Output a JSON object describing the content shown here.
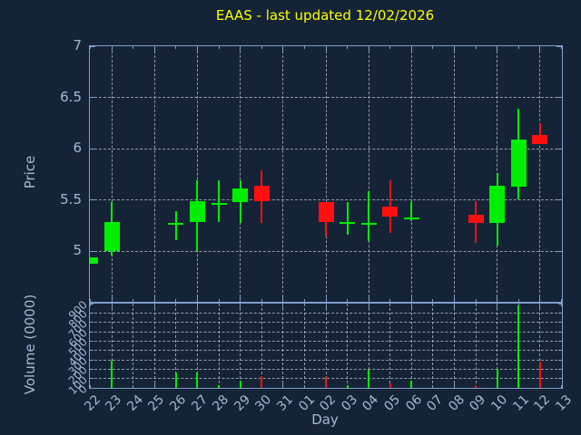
{
  "window": {
    "title": "EAAS - last updated 12/02/2026"
  },
  "colors": {
    "background": "#152337",
    "title": "#ffff00",
    "axis_text": "#a4b9d6",
    "border": "#7e9ecb",
    "grid": "#a8b0ba",
    "up": "#00ee00",
    "down": "#ff0f0f"
  },
  "chart_data": {
    "type": "candlestick-with-volume",
    "title": "EAAS - last updated 12/02/2026",
    "x_axis": {
      "label": "Day",
      "tick_labels": [
        "22",
        "23",
        "24",
        "25",
        "26",
        "27",
        "28",
        "29",
        "30",
        "31",
        "01",
        "02",
        "03",
        "04",
        "05",
        "06",
        "07",
        "08",
        "09",
        "10",
        "11",
        "12",
        "13"
      ],
      "grid_tick_labels": [
        "23",
        "25",
        "27",
        "29",
        "31",
        "02",
        "04",
        "06",
        "08",
        "10",
        "12"
      ]
    },
    "price_axis": {
      "label": "Price",
      "tick_values": [
        5,
        5.5,
        6,
        6.5,
        7
      ],
      "tick_labels": [
        "5",
        "5.5",
        "6",
        "6.5",
        "7"
      ],
      "range": [
        4.5,
        7
      ],
      "grid": "dashed"
    },
    "volume_axis": {
      "label": "Volume (0000)",
      "tick_values": [
        0,
        100,
        200,
        300,
        400,
        500,
        600,
        700,
        800,
        900
      ],
      "tick_labels": [
        "0",
        "100",
        "200",
        "300",
        "400",
        "500",
        "600",
        "700",
        "800",
        "900"
      ],
      "range": [
        0,
        900
      ],
      "grid": "dashed"
    },
    "series": [
      {
        "day": "22",
        "open": 4.88,
        "high": 4.94,
        "low": 4.88,
        "close": 4.94,
        "volume": 0,
        "direction": "up"
      },
      {
        "day": "23",
        "open": 5.0,
        "high": 5.48,
        "low": 4.96,
        "close": 5.28,
        "volume": 290,
        "direction": "up"
      },
      {
        "day": "26",
        "open": 5.27,
        "high": 5.39,
        "low": 5.11,
        "close": 5.27,
        "volume": 165,
        "direction": "up"
      },
      {
        "day": "27",
        "open": 5.28,
        "high": 5.69,
        "low": 5.0,
        "close": 5.49,
        "volume": 165,
        "direction": "up"
      },
      {
        "day": "28",
        "open": 5.47,
        "high": 5.69,
        "low": 5.28,
        "close": 5.47,
        "volume": 30,
        "direction": "up"
      },
      {
        "day": "29",
        "open": 5.48,
        "high": 5.69,
        "low": 5.27,
        "close": 5.61,
        "volume": 75,
        "direction": "up"
      },
      {
        "day": "30",
        "open": 5.64,
        "high": 5.79,
        "low": 5.27,
        "close": 5.49,
        "volume": 125,
        "direction": "down"
      },
      {
        "day": "02",
        "open": 5.48,
        "high": 5.48,
        "low": 5.14,
        "close": 5.28,
        "volume": 120,
        "direction": "down"
      },
      {
        "day": "03",
        "open": 5.28,
        "high": 5.48,
        "low": 5.16,
        "close": 5.28,
        "volume": 30,
        "direction": "up"
      },
      {
        "day": "04",
        "open": 5.27,
        "high": 5.58,
        "low": 5.1,
        "close": 5.27,
        "volume": 190,
        "direction": "up"
      },
      {
        "day": "05",
        "open": 5.43,
        "high": 5.69,
        "low": 5.18,
        "close": 5.34,
        "volume": 45,
        "direction": "down"
      },
      {
        "day": "06",
        "open": 5.33,
        "high": 5.48,
        "low": 5.29,
        "close": 5.33,
        "volume": 75,
        "direction": "up"
      },
      {
        "day": "09",
        "open": 5.35,
        "high": 5.49,
        "low": 5.08,
        "close": 5.27,
        "volume": 30,
        "direction": "down"
      },
      {
        "day": "10",
        "open": 5.27,
        "high": 5.76,
        "low": 5.05,
        "close": 5.64,
        "volume": 200,
        "direction": "up"
      },
      {
        "day": "11",
        "open": 5.63,
        "high": 6.39,
        "low": 5.5,
        "close": 6.09,
        "volume": 880,
        "direction": "up"
      },
      {
        "day": "12",
        "open": 6.13,
        "high": 6.25,
        "low": 6.04,
        "close": 6.04,
        "volume": 280,
        "direction": "down"
      }
    ]
  }
}
